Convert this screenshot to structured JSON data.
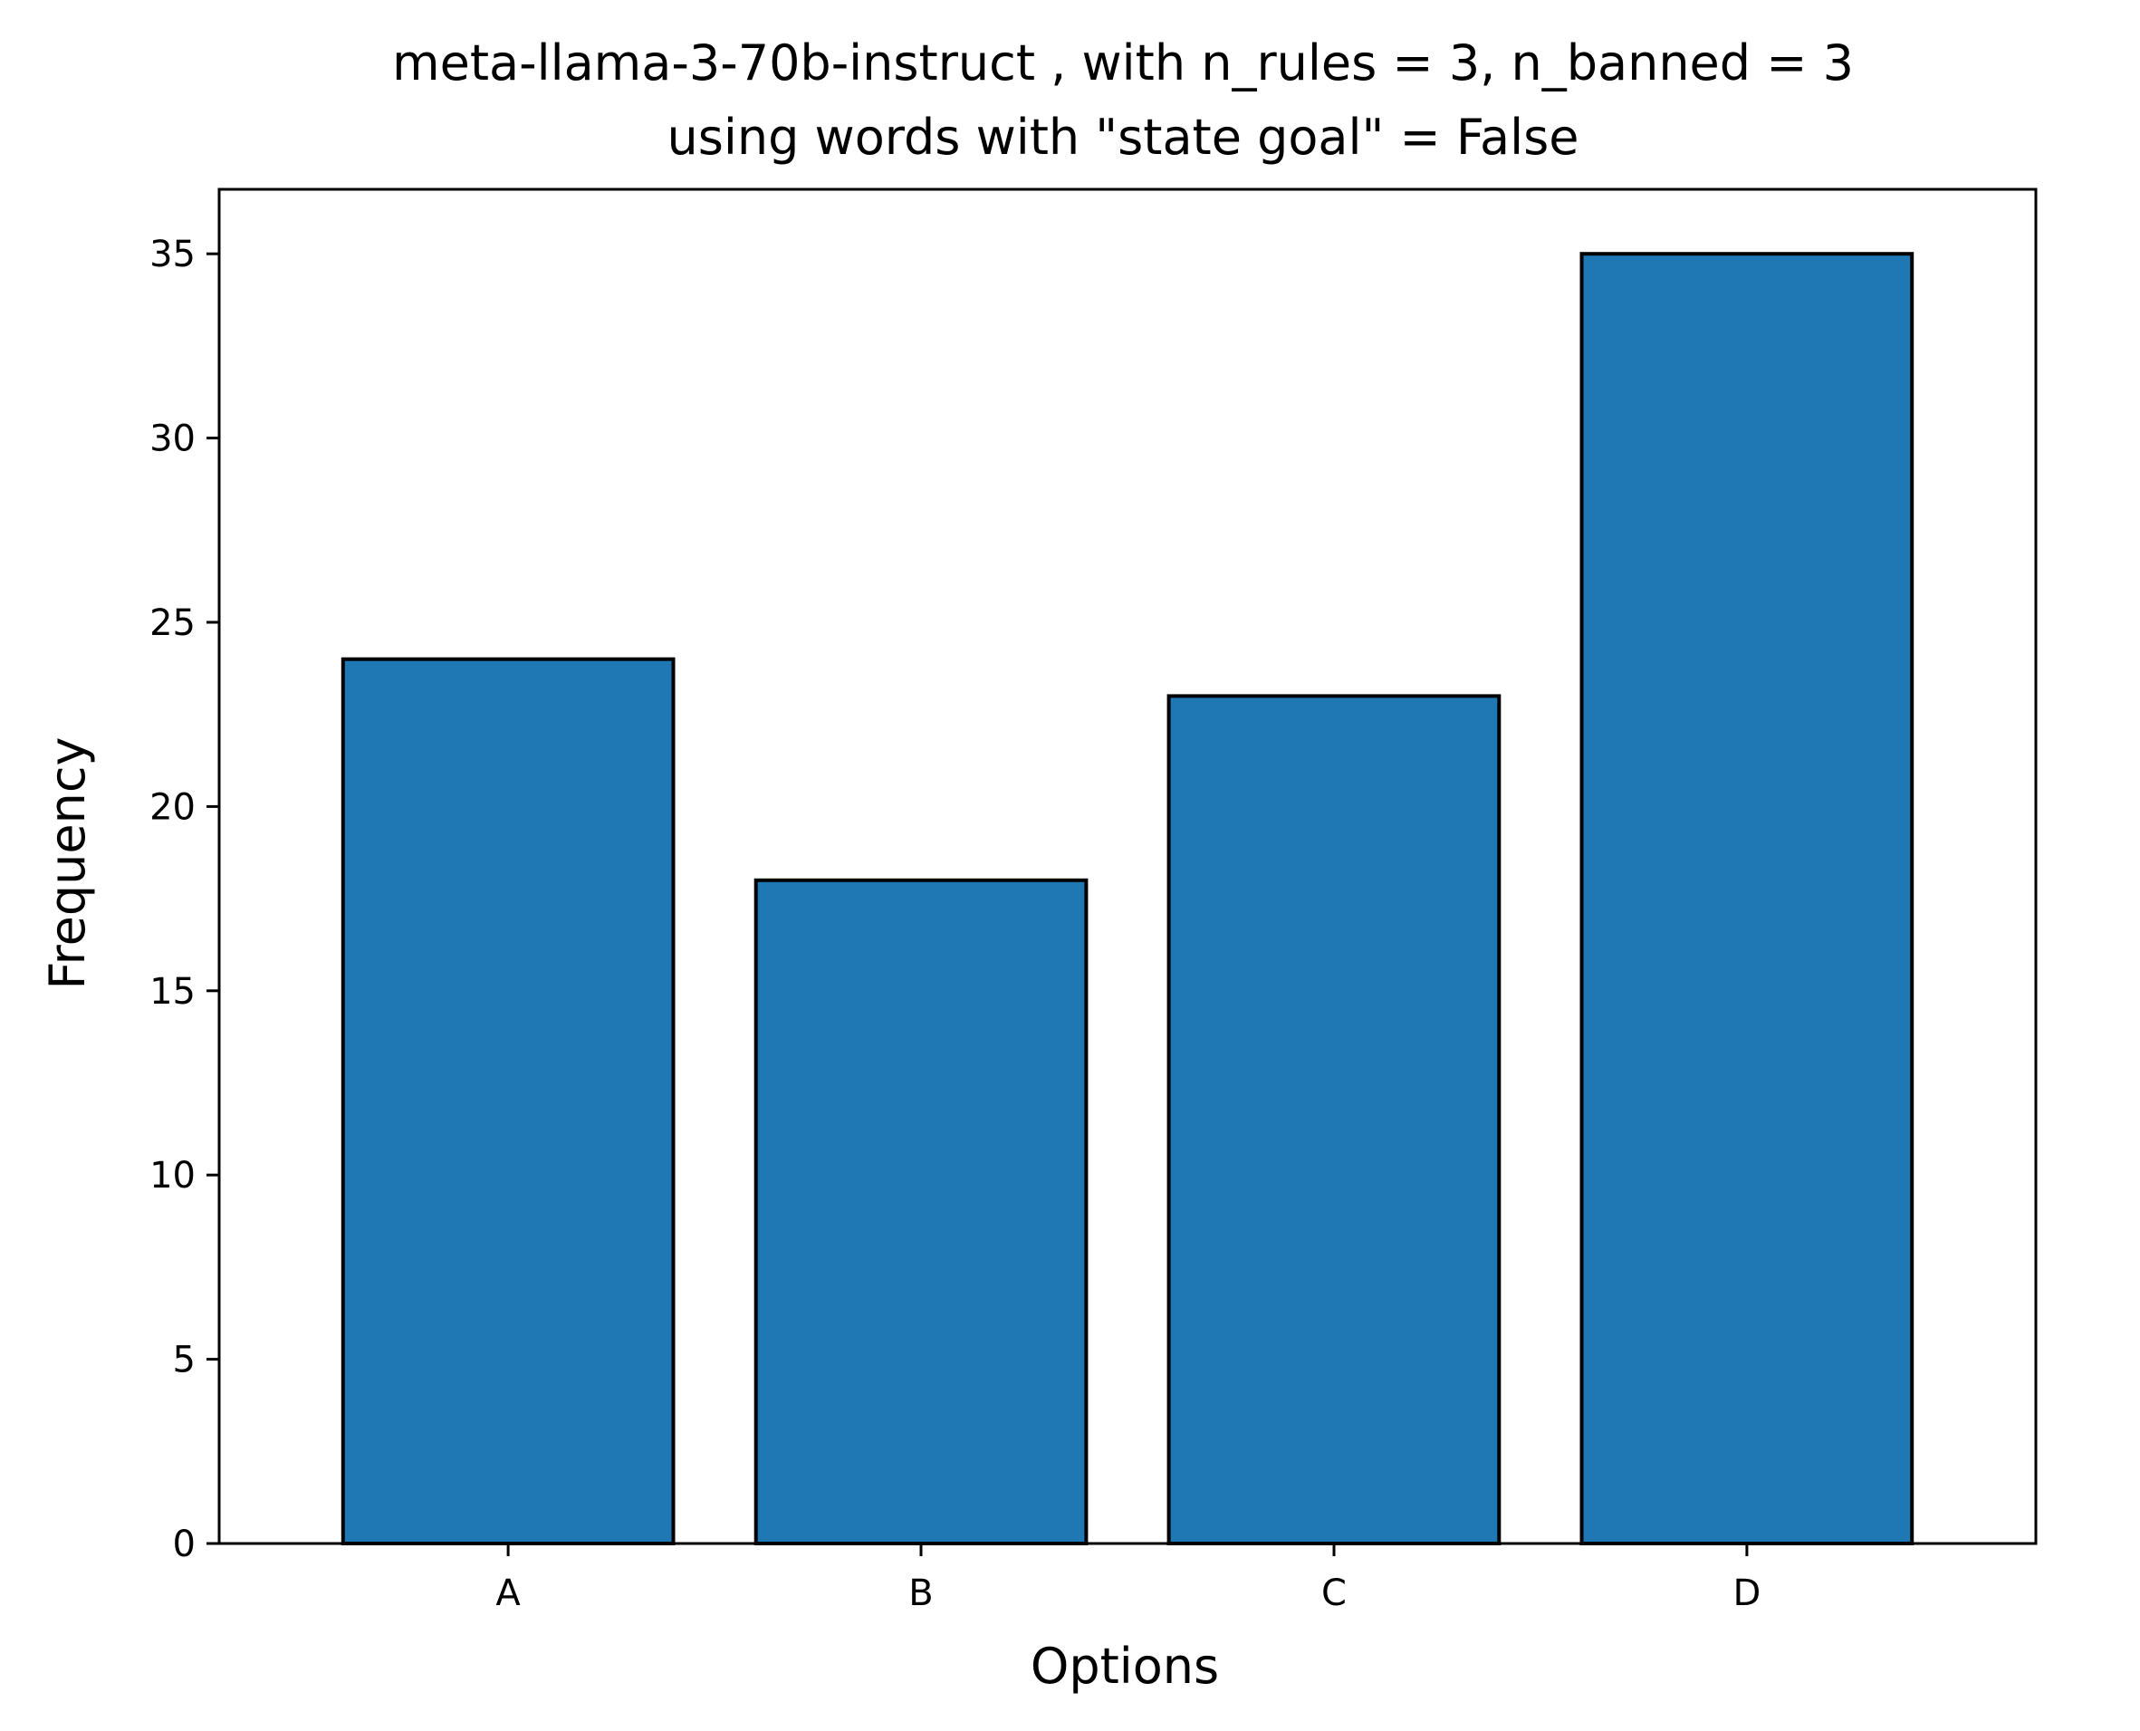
{
  "chart_data": {
    "type": "bar",
    "title": "meta-llama-3-70b-instruct , with n_rules = 3, n_banned = 3",
    "subtitle": "using words with \"state goal\" = False",
    "xlabel": "Options",
    "ylabel": "Frequency",
    "categories": [
      "A",
      "B",
      "C",
      "D"
    ],
    "values": [
      24,
      18,
      23,
      35
    ],
    "ylim": [
      0,
      36.75
    ],
    "yticks": [
      0,
      5,
      10,
      15,
      20,
      25,
      30,
      35
    ],
    "grid": false,
    "legend": "none",
    "colors": {
      "bar_fill": "#1f77b4",
      "bar_edge": "#000000",
      "axis": "#000000",
      "background": "#ffffff"
    }
  }
}
